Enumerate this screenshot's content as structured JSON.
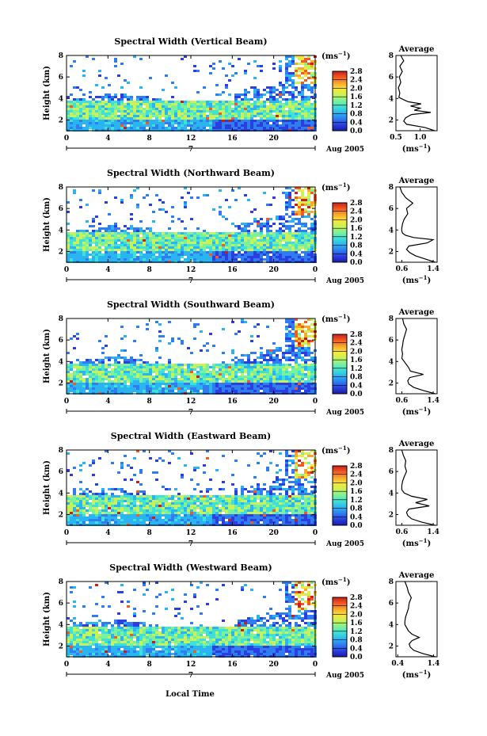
{
  "figure": {
    "x_axis_label": "Local Time",
    "colorbar_unit": "(ms",
    "colorbar_unit_sup": "−1",
    "average_title": "Average",
    "day_label": "7",
    "month_label": "Aug 2005"
  },
  "chart_data": [
    {
      "type": "heatmap",
      "title": "Spectral Width (Vertical Beam)",
      "xlabel": "",
      "ylabel": "Height (km)",
      "xlim": [
        0,
        24
      ],
      "ylim": [
        1,
        8
      ],
      "x_ticks": [
        "0",
        "4",
        "8",
        "12",
        "16",
        "20",
        "0"
      ],
      "y_ticks": [
        "2",
        "4",
        "6",
        "8"
      ],
      "colorbar": {
        "unit": "ms^-1",
        "range": [
          0.0,
          2.8
        ],
        "ticks": [
          "2.8",
          "2.4",
          "2.0",
          "1.6",
          "1.2",
          "0.8",
          "0.4",
          "0.0"
        ]
      },
      "average_profile": {
        "title": "Average",
        "xlabel": "(ms^-1)",
        "x_ticks": [
          "0.5",
          "1.0"
        ],
        "xlim": [
          0.5,
          1.35
        ],
        "y_ticks": [
          "2",
          "4",
          "6",
          "8"
        ],
        "ylim": [
          1,
          8
        ],
        "height_km": [
          1.0,
          1.3,
          1.6,
          1.9,
          2.2,
          2.5,
          2.7,
          2.9,
          3.1,
          3.3,
          3.5,
          3.7,
          3.9,
          4.1,
          4.5,
          5.0,
          5.5,
          6.0,
          6.5,
          7.0,
          7.5,
          8.0
        ],
        "width_ms": [
          1.3,
          1.1,
          0.72,
          0.66,
          0.7,
          0.82,
          1.22,
          0.88,
          1.0,
          0.8,
          1.02,
          0.75,
          0.65,
          0.56,
          0.58,
          0.55,
          0.6,
          0.57,
          0.63,
          0.58,
          0.66,
          0.6
        ]
      }
    },
    {
      "type": "heatmap",
      "title": "Spectral Width (Northward Beam)",
      "xlabel": "",
      "ylabel": "Height (km)",
      "xlim": [
        0,
        24
      ],
      "ylim": [
        1,
        8
      ],
      "x_ticks": [
        "0",
        "4",
        "8",
        "12",
        "16",
        "20",
        "0"
      ],
      "y_ticks": [
        "2",
        "4",
        "6",
        "8"
      ],
      "colorbar": {
        "unit": "ms^-1",
        "range": [
          0.0,
          2.8
        ],
        "ticks": [
          "2.8",
          "2.4",
          "2.0",
          "1.6",
          "1.2",
          "0.8",
          "0.4",
          "0.0"
        ]
      },
      "average_profile": {
        "title": "Average",
        "xlabel": "(ms^-1)",
        "x_ticks": [
          "0.6",
          "1.4"
        ],
        "xlim": [
          0.45,
          1.5
        ],
        "y_ticks": [
          "2",
          "4",
          "6",
          "8"
        ],
        "ylim": [
          1,
          8
        ],
        "height_km": [
          1.0,
          1.3,
          1.6,
          1.9,
          2.2,
          2.5,
          2.8,
          3.1,
          3.3,
          3.5,
          3.7,
          3.9,
          4.2,
          4.6,
          5.0,
          5.5,
          6.0,
          6.5,
          7.0,
          7.5,
          8.0
        ],
        "width_ms": [
          1.45,
          1.2,
          0.95,
          0.8,
          0.72,
          0.78,
          1.25,
          1.4,
          0.9,
          0.7,
          0.62,
          0.6,
          0.6,
          0.62,
          0.66,
          0.75,
          0.72,
          0.88,
          0.7,
          0.6,
          0.55
        ]
      }
    },
    {
      "type": "heatmap",
      "title": "Spectral Width (Southward Beam)",
      "xlabel": "",
      "ylabel": "Height (km)",
      "xlim": [
        0,
        24
      ],
      "ylim": [
        1,
        8
      ],
      "x_ticks": [
        "0",
        "4",
        "8",
        "12",
        "16",
        "20",
        "0"
      ],
      "y_ticks": [
        "2",
        "4",
        "6",
        "8"
      ],
      "colorbar": {
        "unit": "ms^-1",
        "range": [
          0.0,
          2.8
        ],
        "ticks": [
          "2.8",
          "2.4",
          "2.0",
          "1.6",
          "1.2",
          "0.8",
          "0.4",
          "0.0"
        ]
      },
      "average_profile": {
        "title": "Average",
        "xlabel": "(ms^-1)",
        "x_ticks": [
          "0.6",
          "1.4"
        ],
        "xlim": [
          0.45,
          1.5
        ],
        "y_ticks": [
          "2",
          "4",
          "6",
          "8"
        ],
        "ylim": [
          1,
          8
        ],
        "height_km": [
          1.0,
          1.3,
          1.6,
          1.9,
          2.2,
          2.5,
          2.8,
          3.1,
          3.4,
          3.7,
          4.0,
          4.3,
          4.7,
          5.1,
          5.5,
          6.0,
          6.5,
          7.0,
          7.5,
          8.0
        ],
        "width_ms": [
          1.45,
          1.15,
          0.9,
          0.78,
          0.75,
          0.8,
          1.15,
          0.82,
          0.78,
          0.72,
          0.66,
          0.6,
          0.62,
          0.6,
          0.62,
          0.64,
          0.68,
          0.72,
          0.65,
          0.62
        ]
      }
    },
    {
      "type": "heatmap",
      "title": "Spectral Width (Eastward Beam)",
      "xlabel": "",
      "ylabel": "Height (km)",
      "xlim": [
        0,
        24
      ],
      "ylim": [
        1,
        8
      ],
      "x_ticks": [
        "0",
        "4",
        "8",
        "12",
        "16",
        "20",
        "0"
      ],
      "y_ticks": [
        "2",
        "4",
        "6",
        "8"
      ],
      "colorbar": {
        "unit": "ms^-1",
        "range": [
          0.0,
          2.8
        ],
        "ticks": [
          "2.8",
          "2.4",
          "2.0",
          "1.6",
          "1.2",
          "0.8",
          "0.4",
          "0.0"
        ]
      },
      "average_profile": {
        "title": "Average",
        "xlabel": "(ms^-1)",
        "x_ticks": [
          "0.6",
          "1.4"
        ],
        "xlim": [
          0.45,
          1.5
        ],
        "y_ticks": [
          "2",
          "4",
          "6",
          "8"
        ],
        "ylim": [
          1,
          8
        ],
        "height_km": [
          1.0,
          1.3,
          1.6,
          1.9,
          2.2,
          2.5,
          2.8,
          3.1,
          3.4,
          3.7,
          4.0,
          4.3,
          4.7,
          5.1,
          5.5,
          6.0,
          6.5,
          7.0,
          7.5,
          8.0
        ],
        "width_ms": [
          1.45,
          1.1,
          0.85,
          0.75,
          0.72,
          0.78,
          1.3,
          0.95,
          1.25,
          0.85,
          0.66,
          0.6,
          0.6,
          0.62,
          0.66,
          0.72,
          0.68,
          0.7,
          0.64,
          0.6
        ]
      }
    },
    {
      "type": "heatmap",
      "title": "Spectral Width (Westward Beam)",
      "xlabel": "Local Time",
      "ylabel": "Height (km)",
      "xlim": [
        0,
        24
      ],
      "ylim": [
        1,
        8
      ],
      "x_ticks": [
        "0",
        "4",
        "8",
        "12",
        "16",
        "20",
        "0"
      ],
      "y_ticks": [
        "2",
        "4",
        "6",
        "8"
      ],
      "colorbar": {
        "unit": "ms^-1",
        "range": [
          0.0,
          2.8
        ],
        "ticks": [
          "2.8",
          "2.4",
          "2.0",
          "1.6",
          "1.2",
          "0.8",
          "0.4",
          "0.0"
        ]
      },
      "average_profile": {
        "title": "Average",
        "xlabel": "(ms^-1)",
        "x_ticks": [
          "0.4",
          "1.4"
        ],
        "xlim": [
          0.35,
          1.5
        ],
        "y_ticks": [
          "2",
          "4",
          "6",
          "8"
        ],
        "ylim": [
          1,
          8
        ],
        "height_km": [
          1.0,
          1.3,
          1.6,
          1.9,
          2.2,
          2.5,
          2.8,
          3.1,
          3.4,
          3.7,
          4.0,
          4.3,
          4.7,
          5.1,
          5.5,
          6.0,
          6.5,
          7.0,
          7.5,
          8.0
        ],
        "width_ms": [
          1.45,
          1.1,
          0.85,
          0.75,
          0.72,
          0.8,
          1.0,
          0.8,
          0.7,
          0.65,
          0.6,
          0.6,
          0.62,
          0.66,
          0.7,
          0.72,
          0.78,
          0.7,
          0.66,
          0.6
        ]
      }
    }
  ]
}
